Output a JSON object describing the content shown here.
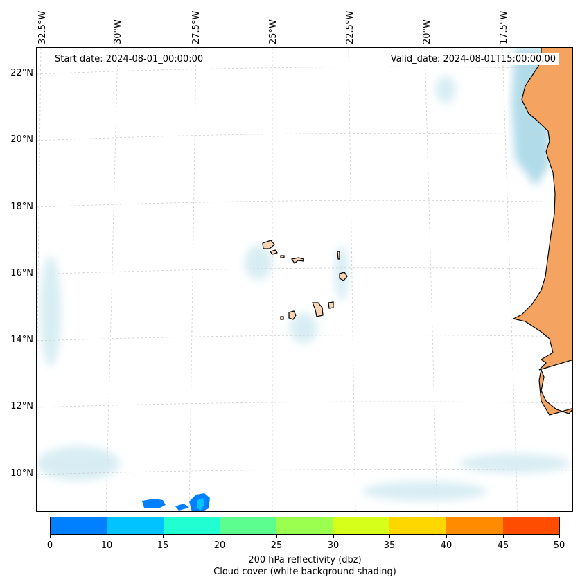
{
  "map": {
    "start_date": "Start date: 2024-08-01_00:00:00",
    "valid_date": "Valid_date: 2024-08-01T15:00:00.00",
    "lon_labels": [
      "32.5°W",
      "30°W",
      "27.5°W",
      "25°W",
      "22.5°W",
      "20°W",
      "17.5°W"
    ],
    "lat_labels": [
      "22°N",
      "20°N",
      "18°N",
      "16°N",
      "14°N",
      "12°N",
      "10°N"
    ],
    "land_color": "#f4a460",
    "island_color": "#f8d3b4",
    "cloud_color": "#a9d8e6"
  },
  "colorbar": {
    "ticks": [
      "0",
      "10",
      "15",
      "20",
      "25",
      "30",
      "35",
      "40",
      "45",
      "50"
    ],
    "colors": [
      "#0080ff",
      "#00c3ff",
      "#21ffd2",
      "#5cff8f",
      "#9bff50",
      "#d6ff1a",
      "#ffd700",
      "#ff8c00",
      "#ff4d00"
    ],
    "label_line1": "200 hPa reflectivity (dbz)",
    "label_line2": "Cloud cover (white background shading)"
  }
}
